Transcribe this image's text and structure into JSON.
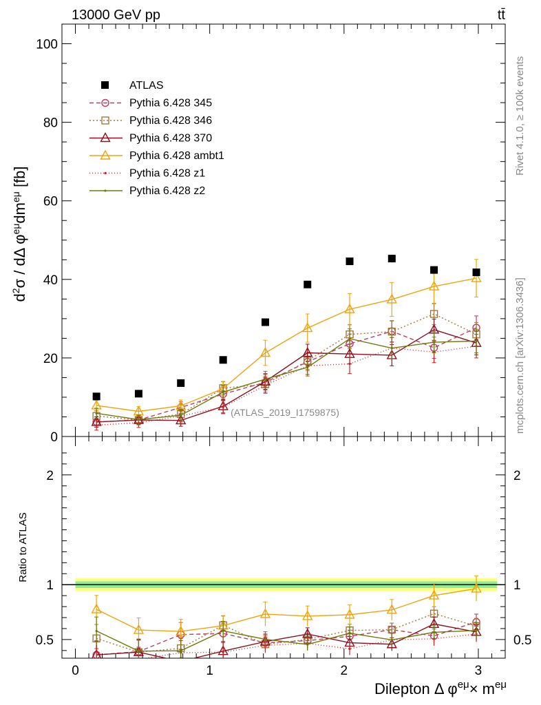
{
  "header": {
    "energy": "13000 GeV pp",
    "process": "tt̄"
  },
  "side": {
    "rivet": "Rivet 4.1.0, ≥ 100k events",
    "source": "mcplots.cern.ch [arXiv:1306.3436]"
  },
  "chart_data": {
    "type": "line",
    "analysis_label": "(ATLAS_2019_I1759875)",
    "ylabel_main": "d²σ / dΔφ^eμ dm^eμ [fb]",
    "ylabel_ratio": "Ratio to ATLAS",
    "xlabel": "Dilepton Δφ^eμ × m^eμ",
    "xlim": [
      -0.1,
      3.2
    ],
    "ylim_main": [
      0,
      105
    ],
    "ylim_ratio": [
      0.33,
      2.35
    ],
    "xticks": [
      "0",
      "1",
      "2",
      "3"
    ],
    "yticks_main": [
      "0",
      "20",
      "40",
      "60",
      "80",
      "100"
    ],
    "yticks_ratio": [
      "0.5",
      "1",
      "2"
    ],
    "x": [
      0.157,
      0.471,
      0.785,
      1.1,
      1.414,
      1.728,
      2.042,
      2.356,
      2.67,
      2.985
    ],
    "data": {
      "name": "ATLAS",
      "values": [
        10.2,
        10.9,
        13.6,
        19.5,
        29.1,
        38.7,
        44.6,
        45.3,
        42.4,
        41.8
      ],
      "band_inner": 0.03,
      "band_outer": 0.06
    },
    "series": [
      {
        "name": "Pythia 6.428 345",
        "color": "#c0395e",
        "dash": "6,4",
        "marker": "circle",
        "values": [
          3.7,
          4.2,
          7.4,
          10.8,
          13.8,
          19.0,
          23.6,
          26.8,
          22.6,
          27.7
        ],
        "errors": [
          1.3,
          1.2,
          1.5,
          1.7,
          2.0,
          2.2,
          2.5,
          2.7,
          2.7,
          3.0
        ],
        "ratio": [
          0.36,
          0.39,
          0.545,
          0.555,
          0.47,
          0.49,
          0.53,
          0.59,
          0.533,
          0.66
        ]
      },
      {
        "name": "Pythia 6.428 346",
        "color": "#a0783c",
        "dash": "2,3",
        "marker": "square",
        "values": [
          5.2,
          4.2,
          5.7,
          12.3,
          13.3,
          19.3,
          26.0,
          26.7,
          31.2,
          26.0
        ],
        "errors": [
          1.3,
          1.2,
          1.5,
          1.7,
          2.0,
          2.2,
          2.5,
          2.7,
          2.7,
          3.0
        ],
        "ratio": [
          0.51,
          0.385,
          0.42,
          0.63,
          0.457,
          0.5,
          0.583,
          0.59,
          0.736,
          0.622
        ]
      },
      {
        "name": "Pythia 6.428 370",
        "color": "#8c0f1e",
        "dash": "",
        "marker": "triangle",
        "values": [
          3.7,
          4.2,
          4.1,
          7.7,
          14.0,
          21.3,
          21.0,
          20.7,
          27.2,
          23.8
        ],
        "errors": [
          1.3,
          1.2,
          1.5,
          1.7,
          2.0,
          2.2,
          2.5,
          2.7,
          2.7,
          3.0
        ],
        "ratio": [
          0.36,
          0.385,
          0.3,
          0.395,
          0.481,
          0.55,
          0.471,
          0.457,
          0.642,
          0.569
        ]
      },
      {
        "name": "Pythia 6.428 ambt1",
        "color": "#f0a30a",
        "dash": "",
        "marker": "triangle",
        "values": [
          7.9,
          6.4,
          7.8,
          12.2,
          21.3,
          27.6,
          32.4,
          34.9,
          38.2,
          40.3
        ],
        "errors": [
          1.3,
          1.2,
          1.5,
          1.7,
          3.2,
          3.6,
          4.0,
          4.3,
          4.5,
          4.8
        ],
        "ratio": [
          0.775,
          0.587,
          0.574,
          0.626,
          0.732,
          0.713,
          0.726,
          0.77,
          0.901,
          0.964
        ]
      },
      {
        "name": "Pythia 6.428 z1",
        "color": "#cc2222",
        "dash": "1,3",
        "marker": "dot",
        "values": [
          2.9,
          3.5,
          5.2,
          7.5,
          13.0,
          18.0,
          18.5,
          22.5,
          21.5,
          23.0
        ],
        "errors": [
          1.3,
          1.2,
          1.5,
          1.7,
          2.0,
          2.2,
          2.5,
          2.7,
          2.7,
          3.0
        ],
        "ratio": [
          0.29,
          0.32,
          0.38,
          0.385,
          0.447,
          0.465,
          0.415,
          0.497,
          0.507,
          0.55
        ]
      },
      {
        "name": "Pythia 6.428 z2",
        "color": "#6b7a0a",
        "dash": "",
        "marker": "dot",
        "values": [
          5.9,
          4.3,
          5.4,
          11.3,
          14.6,
          17.6,
          24.9,
          22.5,
          24.0,
          24.3
        ],
        "errors": [
          1.3,
          1.2,
          1.5,
          1.7,
          2.0,
          2.2,
          2.5,
          2.7,
          2.7,
          3.0
        ],
        "ratio": [
          0.578,
          0.395,
          0.397,
          0.579,
          0.502,
          0.455,
          0.558,
          0.497,
          0.566,
          0.582
        ]
      }
    ]
  }
}
